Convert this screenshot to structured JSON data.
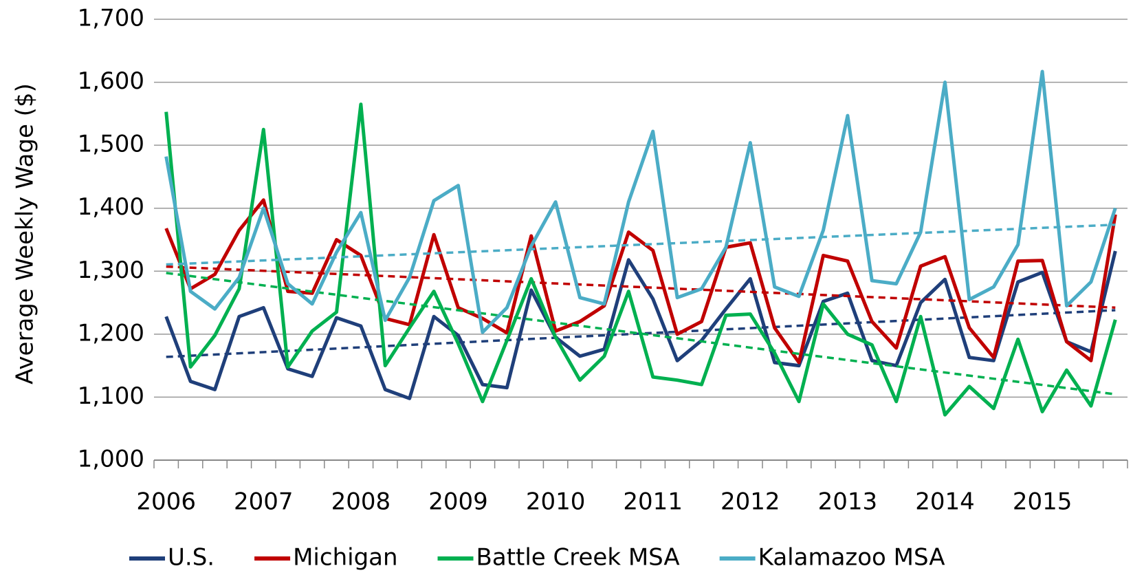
{
  "chart_data": {
    "type": "line",
    "y_label": "Average Weekly Wage ($)",
    "categories": [
      "2006",
      null,
      null,
      null,
      "2007",
      null,
      null,
      null,
      "2008",
      null,
      null,
      null,
      "2009",
      null,
      null,
      null,
      "2010",
      null,
      null,
      null,
      "2011",
      null,
      null,
      null,
      "2012",
      null,
      null,
      null,
      "2013",
      null,
      null,
      null,
      "2014",
      null,
      null,
      null,
      "2015",
      null,
      null,
      null
    ],
    "series": [
      {
        "name": "U.S.",
        "color": "#1f3f7a",
        "trendline": true,
        "values": [
          1228,
          1125,
          1112,
          1228,
          1242,
          1145,
          1133,
          1226,
          1213,
          1112,
          1098,
          1228,
          1198,
          1120,
          1115,
          1270,
          1195,
          1165,
          1176,
          1318,
          1256,
          1158,
          1190,
          1240,
          1288,
          1155,
          1150,
          1252,
          1265,
          1158,
          1150,
          1250,
          1287,
          1163,
          1158,
          1283,
          1298,
          1188,
          1172,
          1332
        ]
      },
      {
        "name": "Michigan",
        "color": "#c00000",
        "trendline": true,
        "values": [
          1368,
          1272,
          1295,
          1365,
          1413,
          1268,
          1265,
          1350,
          1325,
          1225,
          1215,
          1358,
          1242,
          1225,
          1202,
          1356,
          1205,
          1220,
          1245,
          1362,
          1333,
          1200,
          1220,
          1338,
          1345,
          1210,
          1155,
          1325,
          1316,
          1220,
          1178,
          1308,
          1323,
          1210,
          1163,
          1316,
          1317,
          1188,
          1158,
          1390
        ]
      },
      {
        "name": "Battle Creek MSA",
        "color": "#00b050",
        "trendline": true,
        "values": [
          1553,
          1148,
          1198,
          1272,
          1525,
          1148,
          1205,
          1235,
          1565,
          1150,
          1210,
          1268,
          1185,
          1093,
          1190,
          1288,
          1195,
          1127,
          1165,
          1268,
          1132,
          1127,
          1120,
          1230,
          1232,
          1170,
          1093,
          1248,
          1200,
          1183,
          1093,
          1228,
          1072,
          1117,
          1082,
          1192,
          1077,
          1143,
          1086,
          1223
        ]
      },
      {
        "name": "Kalamazoo MSA",
        "color": "#4bacc6",
        "trendline": true,
        "values": [
          1482,
          1268,
          1240,
          1290,
          1400,
          1280,
          1248,
          1330,
          1393,
          1222,
          1290,
          1412,
          1436,
          1203,
          1242,
          1340,
          1410,
          1258,
          1248,
          1410,
          1522,
          1258,
          1272,
          1338,
          1504,
          1275,
          1260,
          1365,
          1547,
          1285,
          1280,
          1362,
          1600,
          1255,
          1275,
          1342,
          1617,
          1245,
          1283,
          1400
        ]
      }
    ],
    "ylim": [
      1000,
      1700
    ],
    "yticks": [
      {
        "value": 1000,
        "label": "1,000"
      },
      {
        "value": 1100,
        "label": "1,100"
      },
      {
        "value": 1200,
        "label": "1,200"
      },
      {
        "value": 1300,
        "label": "1,300"
      },
      {
        "value": 1400,
        "label": "1,400"
      },
      {
        "value": 1500,
        "label": "1,500"
      },
      {
        "value": 1600,
        "label": "1,600"
      },
      {
        "value": 1700,
        "label": "1,700"
      }
    ],
    "grid": true,
    "legend": "bottom"
  }
}
